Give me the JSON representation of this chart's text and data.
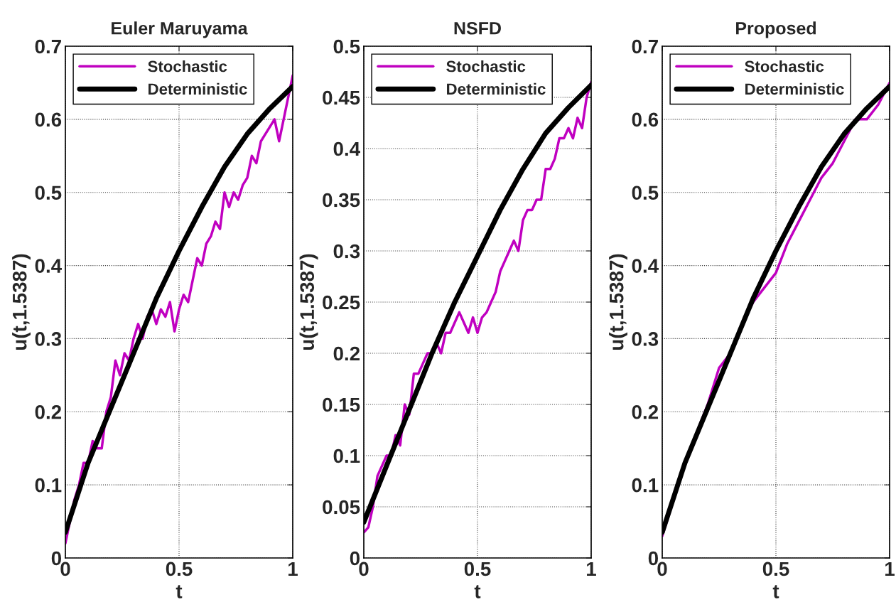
{
  "chart_data": [
    {
      "type": "line",
      "title": "Euler Maruyama",
      "xlabel": "t",
      "ylabel": "u(t,1.5387)",
      "xlim": [
        0,
        1
      ],
      "xticks": [
        0,
        0.5,
        1
      ],
      "ylim": [
        0,
        0.7
      ],
      "yticks": [
        0,
        0.1,
        0.2,
        0.3,
        0.4,
        0.5,
        0.6,
        0.7
      ],
      "grid": true,
      "legend": "top left",
      "series": [
        {
          "name": "Stochastic",
          "color": "#c000c0",
          "x": [
            0,
            0.02,
            0.04,
            0.06,
            0.08,
            0.1,
            0.12,
            0.14,
            0.16,
            0.18,
            0.2,
            0.22,
            0.24,
            0.26,
            0.28,
            0.3,
            0.32,
            0.34,
            0.36,
            0.38,
            0.4,
            0.42,
            0.44,
            0.46,
            0.48,
            0.5,
            0.52,
            0.54,
            0.56,
            0.58,
            0.6,
            0.62,
            0.64,
            0.66,
            0.68,
            0.7,
            0.72,
            0.74,
            0.76,
            0.78,
            0.8,
            0.82,
            0.84,
            0.86,
            0.88,
            0.9,
            0.92,
            0.94,
            0.96,
            0.98,
            1
          ],
          "values": [
            0.02,
            0.05,
            0.08,
            0.1,
            0.13,
            0.13,
            0.16,
            0.15,
            0.15,
            0.2,
            0.22,
            0.27,
            0.25,
            0.28,
            0.27,
            0.3,
            0.32,
            0.3,
            0.33,
            0.34,
            0.32,
            0.34,
            0.33,
            0.35,
            0.31,
            0.34,
            0.36,
            0.35,
            0.38,
            0.41,
            0.4,
            0.43,
            0.44,
            0.46,
            0.45,
            0.5,
            0.48,
            0.5,
            0.49,
            0.51,
            0.52,
            0.55,
            0.54,
            0.57,
            0.58,
            0.59,
            0.6,
            0.57,
            0.6,
            0.63,
            0.66
          ]
        },
        {
          "name": "Deterministic",
          "color": "#000000",
          "x": [
            0,
            0.1,
            0.2,
            0.3,
            0.4,
            0.5,
            0.6,
            0.7,
            0.8,
            0.9,
            1
          ],
          "values": [
            0.035,
            0.13,
            0.205,
            0.28,
            0.355,
            0.42,
            0.48,
            0.535,
            0.58,
            0.615,
            0.645
          ]
        }
      ]
    },
    {
      "type": "line",
      "title": "NSFD",
      "xlabel": "t",
      "ylabel": "u(t,1.5387)",
      "xlim": [
        0,
        1
      ],
      "xticks": [
        0,
        0.5,
        1
      ],
      "ylim": [
        0,
        0.5
      ],
      "yticks": [
        0,
        0.05,
        0.1,
        0.15,
        0.2,
        0.25,
        0.3,
        0.35,
        0.4,
        0.45,
        0.5
      ],
      "grid": true,
      "legend": "top left",
      "series": [
        {
          "name": "Stochastic",
          "color": "#c000c0",
          "x": [
            0,
            0.02,
            0.04,
            0.06,
            0.08,
            0.1,
            0.12,
            0.14,
            0.16,
            0.18,
            0.2,
            0.22,
            0.24,
            0.26,
            0.28,
            0.3,
            0.32,
            0.34,
            0.36,
            0.38,
            0.4,
            0.42,
            0.44,
            0.46,
            0.48,
            0.5,
            0.52,
            0.54,
            0.56,
            0.58,
            0.6,
            0.62,
            0.64,
            0.66,
            0.68,
            0.7,
            0.72,
            0.74,
            0.76,
            0.78,
            0.8,
            0.82,
            0.84,
            0.86,
            0.88,
            0.9,
            0.92,
            0.94,
            0.96,
            0.98,
            1
          ],
          "values": [
            0.025,
            0.03,
            0.05,
            0.08,
            0.09,
            0.1,
            0.1,
            0.12,
            0.11,
            0.15,
            0.14,
            0.18,
            0.18,
            0.19,
            0.2,
            0.2,
            0.21,
            0.2,
            0.22,
            0.22,
            0.23,
            0.24,
            0.23,
            0.22,
            0.235,
            0.22,
            0.235,
            0.24,
            0.25,
            0.26,
            0.28,
            0.29,
            0.3,
            0.31,
            0.3,
            0.33,
            0.34,
            0.34,
            0.35,
            0.35,
            0.38,
            0.38,
            0.39,
            0.41,
            0.41,
            0.42,
            0.41,
            0.43,
            0.42,
            0.45,
            0.465
          ]
        },
        {
          "name": "Deterministic",
          "color": "#000000",
          "x": [
            0,
            0.1,
            0.2,
            0.3,
            0.4,
            0.5,
            0.6,
            0.7,
            0.8,
            0.9,
            1
          ],
          "values": [
            0.035,
            0.09,
            0.145,
            0.2,
            0.25,
            0.295,
            0.34,
            0.38,
            0.415,
            0.44,
            0.462
          ]
        }
      ]
    },
    {
      "type": "line",
      "title": "Proposed",
      "xlabel": "t",
      "ylabel": "u(t,1.5387)",
      "xlim": [
        0,
        1
      ],
      "xticks": [
        0,
        0.5,
        1
      ],
      "ylim": [
        0,
        0.7
      ],
      "yticks": [
        0,
        0.1,
        0.2,
        0.3,
        0.4,
        0.5,
        0.6,
        0.7
      ],
      "grid": true,
      "legend": "top left",
      "series": [
        {
          "name": "Stochastic",
          "color": "#c000c0",
          "x": [
            0,
            0.05,
            0.1,
            0.15,
            0.2,
            0.25,
            0.3,
            0.35,
            0.4,
            0.45,
            0.5,
            0.55,
            0.6,
            0.65,
            0.7,
            0.75,
            0.8,
            0.85,
            0.9,
            0.95,
            1
          ],
          "values": [
            0.03,
            0.08,
            0.13,
            0.17,
            0.21,
            0.26,
            0.28,
            0.32,
            0.35,
            0.37,
            0.39,
            0.43,
            0.46,
            0.49,
            0.52,
            0.54,
            0.57,
            0.6,
            0.6,
            0.62,
            0.65
          ]
        },
        {
          "name": "Deterministic",
          "color": "#000000",
          "x": [
            0,
            0.1,
            0.2,
            0.3,
            0.4,
            0.5,
            0.6,
            0.7,
            0.8,
            0.9,
            1
          ],
          "values": [
            0.035,
            0.13,
            0.205,
            0.28,
            0.355,
            0.42,
            0.48,
            0.535,
            0.58,
            0.615,
            0.645
          ]
        }
      ]
    }
  ]
}
